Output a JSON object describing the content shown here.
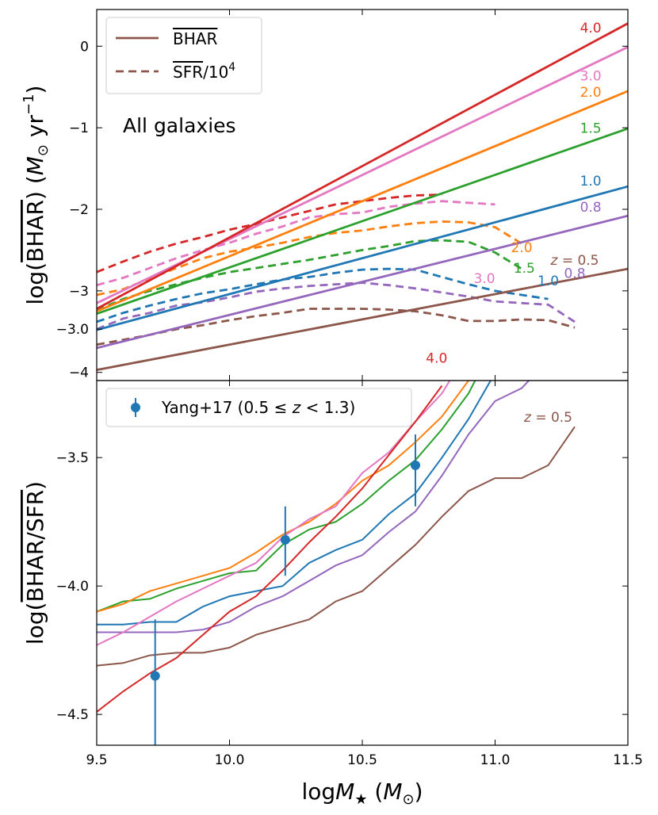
{
  "chart_data": [
    {
      "type": "line",
      "panel": "top",
      "annotation": "All galaxies",
      "xlim": [
        9.5,
        11.5
      ],
      "ylim": [
        -4.1,
        0.45
      ],
      "ylabel_parts": {
        "pre": "log(",
        "over": "BHAR",
        "mid": ") (",
        "sym": "M",
        "sub": "⊙",
        "unit": " yr",
        "exp": "−1",
        "post": ")"
      },
      "xticks": [
        9.5,
        10.0,
        10.5,
        11.0,
        11.5
      ],
      "yticks": [
        0,
        -1,
        -2,
        -3,
        -4
      ],
      "ytick_labels": [
        "0",
        "−1",
        "−2",
        "−3",
        "−4"
      ],
      "legend": {
        "position": "top-left",
        "entries": [
          {
            "label": "BHAR",
            "style": "solid",
            "overline": "BHAR",
            "suffix": ""
          },
          {
            "label": "SFR/10^4",
            "style": "dashed",
            "overline": "SFR",
            "suffix": "/10",
            "exp": "4"
          }
        ]
      },
      "series": [
        {
          "name": "z = 0.5",
          "label": "= 0.5",
          "z_prefix": true,
          "color": "#8c564b",
          "label_x": 11.3,
          "label_y": -2.68,
          "solid": {
            "x": [
              9.5,
              11.5
            ],
            "y": [
              -3.97,
              -2.73
            ]
          },
          "dashed": {
            "x": [
              9.5,
              9.6,
              9.7,
              9.8,
              9.9,
              10.0,
              10.1,
              10.2,
              10.3,
              10.4,
              10.5,
              10.6,
              10.7,
              10.8,
              10.9,
              11.0,
              11.1,
              11.2,
              11.3
            ],
            "y": [
              -3.66,
              -3.6,
              -3.54,
              -3.47,
              -3.42,
              -3.36,
              -3.31,
              -3.27,
              -3.22,
              -3.22,
              -3.22,
              -3.23,
              -3.25,
              -3.3,
              -3.37,
              -3.37,
              -3.35,
              -3.36,
              -3.45
            ]
          }
        },
        {
          "name": "z = 0.8",
          "label": "0.8",
          "z_prefix": false,
          "color": "#9467bd",
          "label_x": 11.36,
          "label_y": -2.03,
          "solid": {
            "x": [
              9.5,
              11.5
            ],
            "y": [
              -3.7,
              -2.08
            ]
          },
          "dashed": {
            "x": [
              9.5,
              9.6,
              9.7,
              9.8,
              9.9,
              10.0,
              10.1,
              10.2,
              10.3,
              10.4,
              10.5,
              10.6,
              10.7,
              10.8,
              10.9,
              11.0,
              11.1,
              11.2,
              11.3
            ],
            "y": [
              -3.47,
              -3.34,
              -3.27,
              -3.18,
              -3.14,
              -3.08,
              -3.01,
              -2.97,
              -2.94,
              -2.92,
              -2.9,
              -2.93,
              -2.97,
              -3.02,
              -3.07,
              -3.13,
              -3.15,
              -3.17,
              -3.38
            ]
          }
        },
        {
          "name": "z = 1.0",
          "label": "1.0",
          "z_prefix": false,
          "color": "#1f77b4",
          "label_x": 11.36,
          "label_y": -1.71,
          "solid": {
            "x": [
              9.5,
              11.5
            ],
            "y": [
              -3.48,
              -1.72
            ]
          },
          "dashed": {
            "x": [
              9.5,
              9.6,
              9.7,
              9.8,
              9.9,
              10.0,
              10.1,
              10.2,
              10.3,
              10.4,
              10.5,
              10.6,
              10.7,
              10.8,
              10.9,
              11.0,
              11.1,
              11.2
            ],
            "y": [
              -3.38,
              -3.27,
              -3.18,
              -3.1,
              -3.03,
              -2.98,
              -2.92,
              -2.86,
              -2.83,
              -2.78,
              -2.74,
              -2.73,
              -2.74,
              -2.83,
              -2.92,
              -3.0,
              -3.05,
              -3.1
            ]
          }
        },
        {
          "name": "z = 1.5",
          "label": "1.5",
          "z_prefix": false,
          "color": "#2ca02c",
          "label_x": 11.36,
          "label_y": -1.06,
          "solid": {
            "x": [
              9.5,
              11.5
            ],
            "y": [
              -3.28,
              -1.01
            ]
          },
          "dashed": {
            "x": [
              9.5,
              9.6,
              9.7,
              9.8,
              9.9,
              10.0,
              10.1,
              10.2,
              10.3,
              10.4,
              10.5,
              10.6,
              10.7,
              10.8,
              10.9,
              11.0,
              11.1
            ],
            "y": [
              -3.24,
              -3.1,
              -3.0,
              -2.92,
              -2.84,
              -2.77,
              -2.72,
              -2.67,
              -2.62,
              -2.56,
              -2.5,
              -2.45,
              -2.39,
              -2.38,
              -2.4,
              -2.53,
              -2.73
            ]
          }
        },
        {
          "name": "z = 2.0",
          "label": "2.0",
          "z_prefix": false,
          "color": "#ff7f0e",
          "label_x": 11.36,
          "label_y": -0.62,
          "solid": {
            "x": [
              9.5,
              11.5
            ],
            "y": [
              -3.25,
              -0.55
            ]
          },
          "dashed": {
            "x": [
              9.5,
              9.6,
              9.7,
              9.8,
              9.9,
              10.0,
              10.1,
              10.2,
              10.3,
              10.4,
              10.5,
              10.6,
              10.7,
              10.8,
              10.9,
              11.0,
              11.1
            ],
            "y": [
              -3.05,
              -2.98,
              -2.85,
              -2.72,
              -2.6,
              -2.52,
              -2.47,
              -2.41,
              -2.34,
              -2.29,
              -2.26,
              -2.21,
              -2.17,
              -2.15,
              -2.16,
              -2.22,
              -2.42
            ]
          }
        },
        {
          "name": "z = 3.0",
          "label": "3.0",
          "z_prefix": false,
          "color": "#e377c2",
          "label_x": 11.36,
          "label_y": -0.42,
          "solid": {
            "x": [
              9.5,
              11.5
            ],
            "y": [
              -3.15,
              -0.01
            ]
          },
          "dashed": {
            "x": [
              9.5,
              9.6,
              9.7,
              9.8,
              9.9,
              10.0,
              10.1,
              10.2,
              10.3,
              10.4,
              10.5,
              10.6,
              10.7,
              10.8,
              10.9,
              11.0
            ],
            "y": [
              -2.93,
              -2.84,
              -2.72,
              -2.6,
              -2.5,
              -2.41,
              -2.3,
              -2.21,
              -2.1,
              -2.06,
              -2.04,
              -1.97,
              -1.93,
              -1.9,
              -1.92,
              -1.94
            ]
          }
        },
        {
          "name": "z = 4.0",
          "label": "4.0",
          "z_prefix": false,
          "color": "#d62728",
          "label_x": 11.36,
          "label_y": 0.17,
          "solid": {
            "x": [
              9.5,
              11.5
            ],
            "y": [
              -3.22,
              0.28
            ]
          },
          "dashed": {
            "x": [
              9.5,
              9.6,
              9.7,
              9.8,
              9.9,
              10.0,
              10.1,
              10.2,
              10.3,
              10.4,
              10.5,
              10.6,
              10.7,
              10.8
            ],
            "y": [
              -2.77,
              -2.64,
              -2.52,
              -2.42,
              -2.34,
              -2.25,
              -2.18,
              -2.1,
              -2.02,
              -1.94,
              -1.9,
              -1.86,
              -1.83,
              -1.82
            ]
          }
        }
      ]
    },
    {
      "type": "line",
      "panel": "bottom",
      "xlim": [
        9.5,
        11.5
      ],
      "ylim": [
        -4.62,
        -3.2
      ],
      "xlabel_parts": {
        "pre": "log",
        "sym": "M",
        "sub": "★",
        "mid": " (",
        "unit": "M",
        "unit_sub": "⊙",
        "post": ")"
      },
      "ylabel_parts": {
        "pre": "log(",
        "over": "BHAR/SFR",
        "post": ")"
      },
      "xticks": [
        9.5,
        10.0,
        10.5,
        11.0,
        11.5
      ],
      "xtick_labels": [
        "9.5",
        "10.0",
        "10.5",
        "11.0",
        "11.5"
      ],
      "yticks": [
        -3.0,
        -3.5,
        -4.0,
        -4.5
      ],
      "ytick_labels": [
        "−3.0",
        "−3.5",
        "−4.0",
        "−4.5"
      ],
      "legend": {
        "position": "top-left",
        "entries": [
          {
            "label": "Yang+17 (0.5 ≤ z < 1.3)",
            "pre": "Yang+17 (0.5 ≤ ",
            "z": "z",
            "post": " < 1.3)",
            "marker": "errorbar"
          }
        ]
      },
      "observations": {
        "name": "Yang+17",
        "color": "#1f77b4",
        "x": [
          9.72,
          10.21,
          10.7
        ],
        "y": [
          -4.35,
          -3.82,
          -3.53
        ],
        "yerr_low": [
          -4.62,
          -3.96,
          -3.69
        ],
        "yerr_high": [
          -4.13,
          -3.69,
          -3.41
        ]
      },
      "series": [
        {
          "name": "z = 0.5",
          "label": "= 0.5",
          "z_prefix": true,
          "color": "#8c564b",
          "label_x": 11.2,
          "label_y": -3.36,
          "x": [
            9.5,
            9.6,
            9.7,
            9.8,
            9.9,
            10.0,
            10.1,
            10.2,
            10.3,
            10.4,
            10.5,
            10.6,
            10.7,
            10.8,
            10.9,
            11.0,
            11.1,
            11.2,
            11.3
          ],
          "y": [
            -4.31,
            -4.3,
            -4.27,
            -4.26,
            -4.26,
            -4.24,
            -4.19,
            -4.16,
            -4.13,
            -4.06,
            -4.02,
            -3.93,
            -3.84,
            -3.73,
            -3.63,
            -3.58,
            -3.58,
            -3.53,
            -3.38
          ]
        },
        {
          "name": "z = 0.8",
          "label": "0.8",
          "z_prefix": false,
          "color": "#9467bd",
          "label_x": 11.3,
          "label_y": -2.8,
          "x": [
            9.5,
            9.6,
            9.7,
            9.8,
            9.9,
            10.0,
            10.1,
            10.2,
            10.3,
            10.4,
            10.5,
            10.6,
            10.7,
            10.8,
            10.9,
            11.0,
            11.1,
            11.2,
            11.3
          ],
          "y": [
            -4.18,
            -4.18,
            -4.18,
            -4.18,
            -4.17,
            -4.14,
            -4.08,
            -4.04,
            -3.98,
            -3.92,
            -3.88,
            -3.79,
            -3.71,
            -3.57,
            -3.41,
            -3.28,
            -3.23,
            -3.12,
            -2.85
          ]
        },
        {
          "name": "z = 1.0",
          "label": "1.0",
          "z_prefix": false,
          "color": "#1f77b4",
          "label_x": 11.2,
          "label_y": -2.83,
          "x": [
            9.5,
            9.6,
            9.7,
            9.8,
            9.9,
            10.0,
            10.1,
            10.2,
            10.3,
            10.4,
            10.5,
            10.6,
            10.7,
            10.8,
            10.9,
            11.0,
            11.1,
            11.2
          ],
          "y": [
            -4.15,
            -4.15,
            -4.14,
            -4.14,
            -4.08,
            -4.04,
            -4.02,
            -4.0,
            -3.91,
            -3.86,
            -3.82,
            -3.72,
            -3.64,
            -3.5,
            -3.35,
            -3.17,
            -3.03,
            -2.86
          ]
        },
        {
          "name": "z = 1.5",
          "label": "1.5",
          "z_prefix": false,
          "color": "#2ca02c",
          "label_x": 11.11,
          "label_y": -2.78,
          "x": [
            9.5,
            9.6,
            9.7,
            9.8,
            9.9,
            10.0,
            10.1,
            10.2,
            10.3,
            10.4,
            10.5,
            10.6,
            10.7,
            10.8,
            10.9,
            11.0,
            11.1
          ],
          "y": [
            -4.1,
            -4.06,
            -4.05,
            -4.01,
            -3.98,
            -3.95,
            -3.94,
            -3.84,
            -3.78,
            -3.75,
            -3.68,
            -3.59,
            -3.51,
            -3.39,
            -3.25,
            -3.05,
            -2.79
          ]
        },
        {
          "name": "z = 2.0",
          "label": "2.0",
          "z_prefix": false,
          "color": "#ff7f0e",
          "label_x": 11.1,
          "label_y": -2.7,
          "x": [
            9.5,
            9.6,
            9.7,
            9.8,
            9.9,
            10.0,
            10.1,
            10.2,
            10.3,
            10.4,
            10.5,
            10.6,
            10.7,
            10.8,
            10.9,
            11.0,
            11.1
          ],
          "y": [
            -4.1,
            -4.07,
            -4.02,
            -3.99,
            -3.96,
            -3.93,
            -3.87,
            -3.8,
            -3.75,
            -3.68,
            -3.59,
            -3.53,
            -3.44,
            -3.34,
            -3.2,
            -3.0,
            -2.71
          ]
        },
        {
          "name": "z = 3.0",
          "label": "3.0",
          "z_prefix": false,
          "color": "#e377c2",
          "label_x": 10.96,
          "label_y": -2.82,
          "x": [
            9.5,
            9.6,
            9.7,
            9.8,
            9.9,
            10.0,
            10.1,
            10.2,
            10.3,
            10.4,
            10.5,
            10.6,
            10.7,
            10.8,
            10.9,
            11.0
          ],
          "y": [
            -4.23,
            -4.18,
            -4.12,
            -4.06,
            -4.01,
            -3.96,
            -3.91,
            -3.81,
            -3.74,
            -3.69,
            -3.56,
            -3.48,
            -3.36,
            -3.25,
            -3.08,
            -2.86
          ]
        },
        {
          "name": "z = 4.0",
          "label": "4.0",
          "z_prefix": false,
          "color": "#d62728",
          "label_x": 10.78,
          "label_y": -3.13,
          "x": [
            9.5,
            9.6,
            9.7,
            9.8,
            9.9,
            10.0,
            10.1,
            10.2,
            10.3,
            10.4,
            10.5,
            10.6,
            10.7,
            10.8
          ],
          "y": [
            -4.49,
            -4.41,
            -4.34,
            -4.28,
            -4.19,
            -4.1,
            -4.04,
            -3.94,
            -3.83,
            -3.73,
            -3.62,
            -3.49,
            -3.36,
            -3.22
          ]
        }
      ]
    }
  ]
}
